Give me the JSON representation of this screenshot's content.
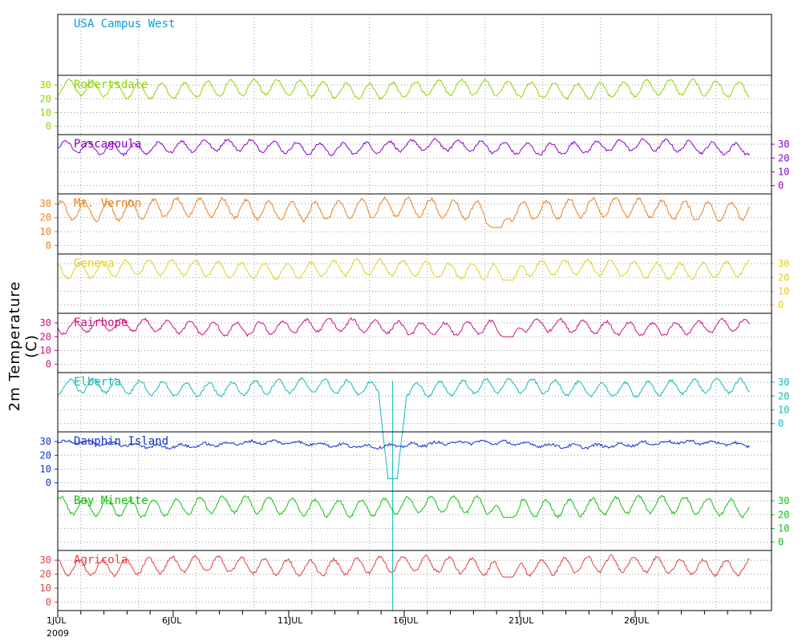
{
  "chart_data": {
    "type": "line",
    "ylabel": "2m Temperature (C)",
    "x_range": [
      "2009-07-01",
      "2009-07-31"
    ],
    "x_ticks": [
      {
        "day": 1,
        "label": "1JUL"
      },
      {
        "day": 6,
        "label": "6JUL"
      },
      {
        "day": 11,
        "label": "11JUL"
      },
      {
        "day": 16,
        "label": "16JUL"
      },
      {
        "day": 21,
        "label": "21JUL"
      },
      {
        "day": 26,
        "label": "26JUL"
      }
    ],
    "x_year_label": "2009",
    "panel_ylim": [
      -6,
      37
    ],
    "y_ticks": [
      0,
      10,
      20,
      30
    ],
    "grid": true,
    "panels": [
      {
        "name": "USA Campus West",
        "color": "#00a0e0",
        "axis_side": "none",
        "has_data": false
      },
      {
        "name": "Robertsdale",
        "color": "#8fd400",
        "axis_side": "left",
        "mean": 27,
        "amp": 5.5,
        "noise": 1.0,
        "phase": 0.15,
        "event": null
      },
      {
        "name": "Pascagoula",
        "color": "#8c00c8",
        "axis_side": "right",
        "mean": 28,
        "amp": 4.0,
        "noise": 1.0,
        "phase": 0.3,
        "event": null
      },
      {
        "name": "Mt. Vernon",
        "color": "#e88020",
        "axis_side": "left",
        "mean": 26,
        "amp": 6.5,
        "noise": 1.2,
        "phase": 0.5,
        "event": {
          "day": 20.0,
          "value": 13
        }
      },
      {
        "name": "Geneva",
        "color": "#e0d020",
        "axis_side": "right",
        "mean": 26,
        "amp": 5.5,
        "noise": 1.0,
        "phase": 0.7,
        "event": {
          "day": 20.5,
          "value": 18
        }
      },
      {
        "name": "Fairhope",
        "color": "#d0107a",
        "axis_side": "left",
        "mean": 27,
        "amp": 4.5,
        "noise": 1.0,
        "phase": 0.9,
        "event": {
          "day": 20.5,
          "value": 20
        }
      },
      {
        "name": "Elberta",
        "color": "#10b8b8",
        "axis_side": "right",
        "mean": 26,
        "amp": 5.0,
        "noise": 1.0,
        "phase": 1.1,
        "event": {
          "day": 15.5,
          "value": -40
        }
      },
      {
        "name": "Dauphin Island",
        "color": "#1030d0",
        "axis_side": "left",
        "mean": 28,
        "amp": 1.2,
        "noise": 1.0,
        "phase": 1.3,
        "event": null
      },
      {
        "name": "Bay Minette",
        "color": "#10c010",
        "axis_side": "right",
        "mean": 26,
        "amp": 6.0,
        "noise": 1.0,
        "phase": 1.5,
        "event": {
          "day": 20.5,
          "value": 18
        }
      },
      {
        "name": "Agricola",
        "color": "#e04040",
        "axis_side": "left",
        "mean": 26,
        "amp": 5.5,
        "noise": 1.1,
        "phase": 1.7,
        "event": {
          "day": 20.5,
          "value": 18
        }
      }
    ]
  }
}
